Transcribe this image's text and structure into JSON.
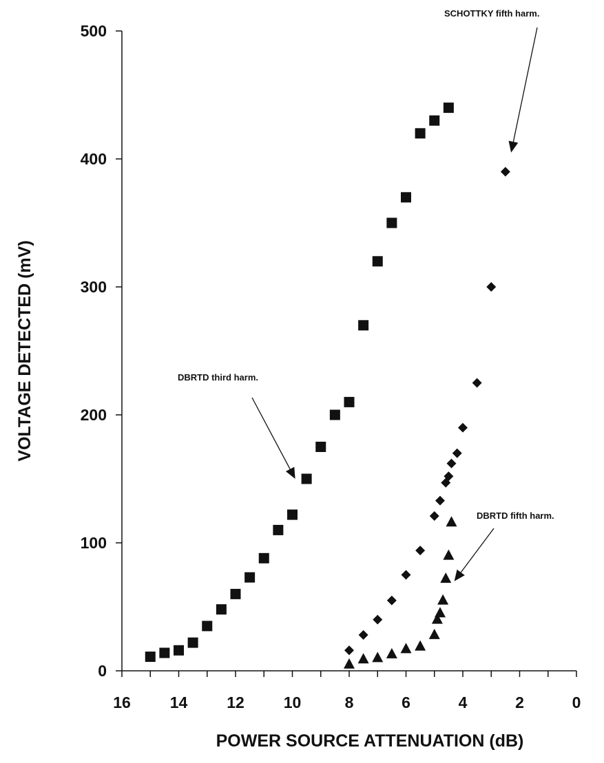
{
  "chart_data": {
    "type": "scatter",
    "title": "",
    "xlabel": "POWER SOURCE ATTENUATION  (dB)",
    "ylabel": "VOLTAGE DETECTED (mV)",
    "xlim": [
      16,
      0
    ],
    "ylim": [
      0,
      500
    ],
    "x_reversed": true,
    "grid": false,
    "legend": "none",
    "x_ticks": [
      "16",
      "14",
      "12",
      "10",
      "8",
      "6",
      "4",
      "2",
      "0"
    ],
    "x_tick_values": [
      16,
      14,
      12,
      10,
      8,
      6,
      4,
      2,
      0
    ],
    "y_ticks": [
      "0",
      "100",
      "200",
      "300",
      "400",
      "500"
    ],
    "y_tick_values": [
      0,
      100,
      200,
      300,
      400,
      500
    ],
    "series": [
      {
        "marker": "square",
        "x": [
          15,
          14.5,
          14,
          13.5,
          13,
          12.5,
          12,
          11.5,
          11,
          10.5,
          10,
          9.5,
          9,
          8.5,
          8,
          7.5,
          7,
          6.5,
          6,
          5.5,
          5,
          4.5
        ],
        "y": [
          11,
          14,
          16,
          22,
          35,
          48,
          60,
          73,
          88,
          110,
          122,
          150,
          175,
          200,
          210,
          270,
          320,
          350,
          370,
          420,
          430,
          440
        ]
      },
      {
        "marker": "diamond",
        "x": [
          8,
          7.5,
          7,
          6.5,
          6,
          5.5,
          5,
          4.8,
          4.6,
          4.5,
          4.4,
          4.2,
          4,
          3.5,
          3,
          2.5
        ],
        "y": [
          16,
          28,
          40,
          55,
          75,
          94,
          121,
          133,
          147,
          152,
          162,
          170,
          190,
          225,
          300,
          390
        ]
      },
      {
        "marker": "triangle",
        "x": [
          8,
          7.5,
          7,
          6.5,
          6,
          5.5,
          5,
          4.9,
          4.8,
          4.7,
          4.6,
          4.5,
          4.4
        ],
        "y": [
          5,
          9,
          10,
          13,
          17,
          19,
          28,
          40,
          45,
          55,
          72,
          90,
          116
        ]
      }
    ],
    "annotations": [
      {
        "text": "SCHOTTKY fifth harm.",
        "target": [
          2.3,
          405
        ]
      },
      {
        "text": "DBRTD third harm.",
        "target": [
          9.9,
          150
        ]
      },
      {
        "text": "DBRTD fifth harm.",
        "target": [
          4.3,
          70
        ]
      }
    ]
  }
}
